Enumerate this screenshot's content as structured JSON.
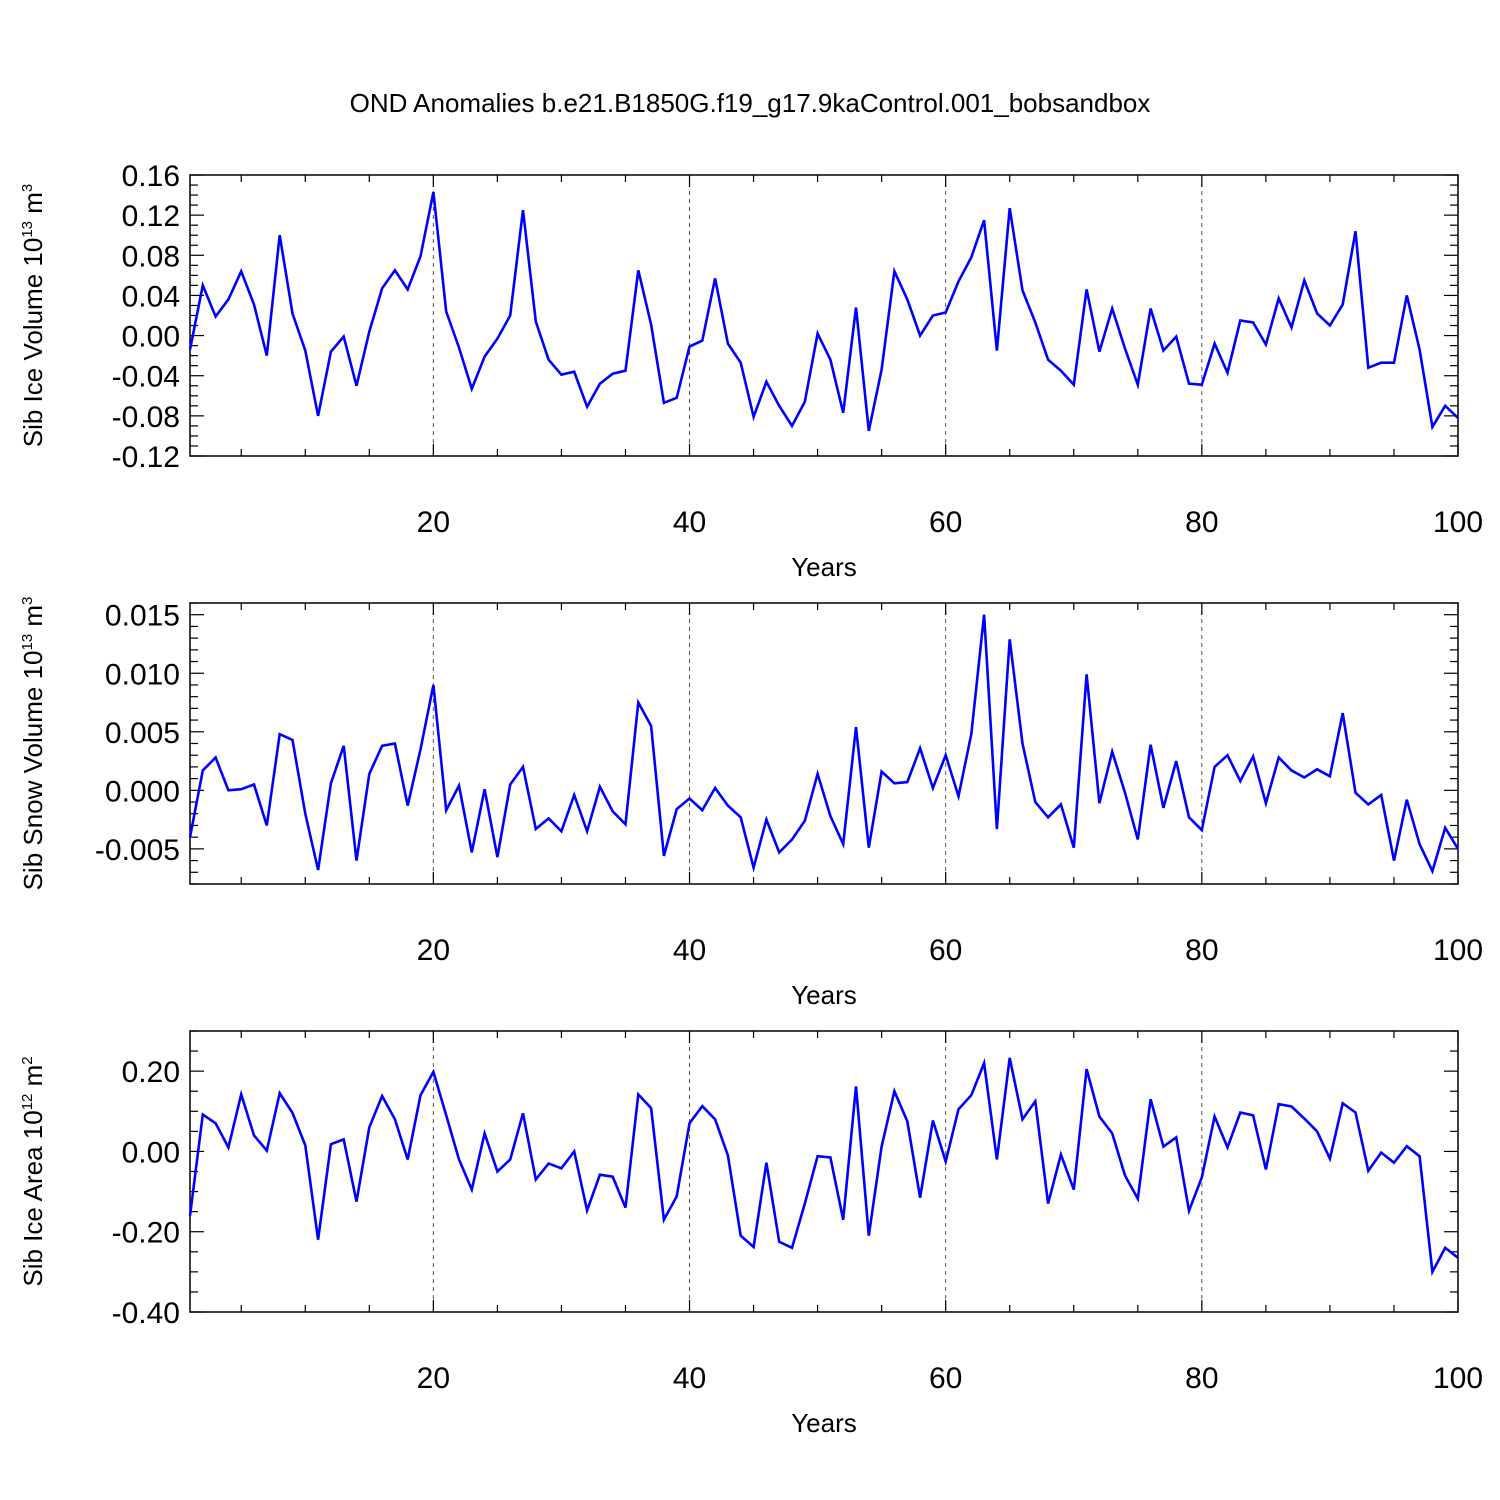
{
  "figure_title": "OND Anomalies b.e21.B1850G.f19_g17.9kaControl.001_bobsandbox",
  "chart_data": [
    {
      "type": "line",
      "ylabel": "Sib Ice Volume 10",
      "ylabel_exp": "13",
      "ylabel_unit": " m",
      "ylabel_unit_exp": "3",
      "xlabel": "Years",
      "xlim": [
        1,
        100
      ],
      "ylim": [
        -0.12,
        0.16
      ],
      "xticks": [
        "20",
        "40",
        "60",
        "80",
        "100"
      ],
      "xtick_values": [
        20,
        40,
        60,
        80,
        100
      ],
      "yticks": [
        "0.16",
        "0.12",
        "0.08",
        "0.04",
        "0.00",
        "-0.04",
        "-0.08",
        "-0.12"
      ],
      "ytick_values": [
        0.16,
        0.12,
        0.08,
        0.04,
        0.0,
        -0.04,
        -0.08,
        -0.12
      ],
      "ymin_step": 0.01,
      "color": "#0000ff",
      "x_start": 1,
      "values": [
        -0.014,
        0.05,
        0.019,
        0.036,
        0.064,
        0.031,
        -0.02,
        0.1,
        0.022,
        -0.015,
        -0.08,
        -0.016,
        -0.001,
        -0.05,
        0.004,
        0.047,
        0.065,
        0.046,
        0.079,
        0.143,
        0.024,
        -0.012,
        -0.053,
        -0.021,
        -0.003,
        0.02,
        0.125,
        0.014,
        -0.024,
        -0.039,
        -0.036,
        -0.071,
        -0.048,
        -0.038,
        -0.035,
        0.065,
        0.011,
        -0.067,
        -0.062,
        -0.011,
        -0.005,
        0.057,
        -0.008,
        -0.027,
        -0.081,
        -0.046,
        -0.07,
        -0.09,
        -0.066,
        0.002,
        -0.024,
        -0.077,
        0.028,
        -0.095,
        -0.034,
        0.064,
        0.036,
        0.0,
        0.02,
        0.023,
        0.054,
        0.078,
        0.115,
        -0.015,
        0.127,
        0.045,
        0.013,
        -0.024,
        -0.035,
        -0.049,
        0.046,
        -0.016,
        0.027,
        -0.013,
        -0.049,
        0.027,
        -0.015,
        -0.001,
        -0.048,
        -0.049,
        -0.008,
        -0.037,
        0.015,
        0.013,
        -0.009,
        0.037,
        0.008,
        0.055,
        0.022,
        0.01,
        0.031,
        0.104,
        -0.032,
        -0.027,
        -0.027,
        0.04,
        -0.014,
        -0.091,
        -0.07,
        -0.082
      ]
    },
    {
      "type": "line",
      "ylabel": "Sib Snow Volume 10",
      "ylabel_exp": "13",
      "ylabel_unit": " m",
      "ylabel_unit_exp": "3",
      "xlabel": "Years",
      "xlim": [
        1,
        100
      ],
      "ylim": [
        -0.008,
        0.016
      ],
      "xticks": [
        "20",
        "40",
        "60",
        "80",
        "100"
      ],
      "xtick_values": [
        20,
        40,
        60,
        80,
        100
      ],
      "yticks": [
        "0.015",
        "0.010",
        "0.005",
        "0.000",
        "-0.005"
      ],
      "ytick_values": [
        0.015,
        0.01,
        0.005,
        0.0,
        -0.005
      ],
      "ymin_step": 0.001,
      "color": "#0000ff",
      "x_start": 1,
      "values": [
        -0.004,
        0.0017,
        0.0028,
        0.0,
        0.0001,
        0.0005,
        -0.003,
        0.0048,
        0.0043,
        -0.002,
        -0.0068,
        0.0006,
        0.0038,
        -0.006,
        0.0014,
        0.0038,
        0.004,
        -0.0013,
        0.0035,
        0.009,
        -0.0017,
        0.0004,
        -0.0053,
        0.0001,
        -0.0057,
        0.0005,
        0.002,
        -0.0033,
        -0.0024,
        -0.0035,
        -0.0004,
        -0.0035,
        0.0003,
        -0.0018,
        -0.0029,
        0.0075,
        0.0055,
        -0.0056,
        -0.0016,
        -0.0007,
        -0.0017,
        0.0002,
        -0.0013,
        -0.0023,
        -0.0066,
        -0.0025,
        -0.0053,
        -0.0042,
        -0.0026,
        0.0014,
        -0.0022,
        -0.0046,
        0.0054,
        -0.0049,
        0.0016,
        0.0006,
        0.0007,
        0.0036,
        0.0002,
        0.003,
        -0.0005,
        0.0048,
        0.015,
        -0.0033,
        0.0129,
        0.004,
        -0.001,
        -0.0023,
        -0.0012,
        -0.0049,
        0.0099,
        -0.0011,
        0.0033,
        -0.0002,
        -0.0042,
        0.0039,
        -0.0015,
        0.0025,
        -0.0023,
        -0.0034,
        0.002,
        0.003,
        0.0008,
        0.0029,
        -0.0011,
        0.0028,
        0.0017,
        0.0011,
        0.0018,
        0.0012,
        0.0066,
        -0.0002,
        -0.0012,
        -0.0004,
        -0.006,
        -0.0008,
        -0.0046,
        -0.0069,
        -0.0032,
        -0.005
      ]
    },
    {
      "type": "line",
      "ylabel": "Sib Ice Area 10",
      "ylabel_exp": "12",
      "ylabel_unit": " m",
      "ylabel_unit_exp": "2",
      "xlabel": "Years",
      "xlim": [
        1,
        100
      ],
      "ylim": [
        -0.4,
        0.3
      ],
      "xticks": [
        "20",
        "40",
        "60",
        "80",
        "100"
      ],
      "xtick_values": [
        20,
        40,
        60,
        80,
        100
      ],
      "yticks": [
        "0.20",
        "0.00",
        "-0.20",
        "-0.40"
      ],
      "ytick_values": [
        0.2,
        0.0,
        -0.2,
        -0.4
      ],
      "ymin_step": 0.05,
      "color": "#0000ff",
      "x_start": 1,
      "values": [
        -0.16,
        0.092,
        0.07,
        0.01,
        0.142,
        0.04,
        0.002,
        0.145,
        0.096,
        0.015,
        -0.22,
        0.018,
        0.03,
        -0.125,
        0.06,
        0.138,
        0.08,
        -0.02,
        0.14,
        0.198,
        0.09,
        -0.02,
        -0.095,
        0.045,
        -0.05,
        -0.02,
        0.095,
        -0.07,
        -0.03,
        -0.042,
        0.0,
        -0.147,
        -0.058,
        -0.063,
        -0.14,
        0.142,
        0.108,
        -0.17,
        -0.112,
        0.07,
        0.113,
        0.08,
        -0.01,
        -0.21,
        -0.238,
        -0.028,
        -0.225,
        -0.24,
        -0.13,
        -0.012,
        -0.015,
        -0.17,
        0.162,
        -0.21,
        0.012,
        0.15,
        0.075,
        -0.115,
        0.077,
        -0.025,
        0.105,
        0.14,
        0.22,
        -0.02,
        0.233,
        0.08,
        0.125,
        -0.13,
        -0.008,
        -0.095,
        0.205,
        0.087,
        0.045,
        -0.06,
        -0.118,
        0.13,
        0.012,
        0.035,
        -0.148,
        -0.065,
        0.087,
        0.01,
        0.097,
        0.09,
        -0.045,
        0.118,
        0.112,
        0.082,
        0.05,
        -0.018,
        0.12,
        0.097,
        -0.048,
        -0.003,
        -0.028,
        0.013,
        -0.012,
        -0.3,
        -0.24,
        -0.265
      ]
    }
  ]
}
